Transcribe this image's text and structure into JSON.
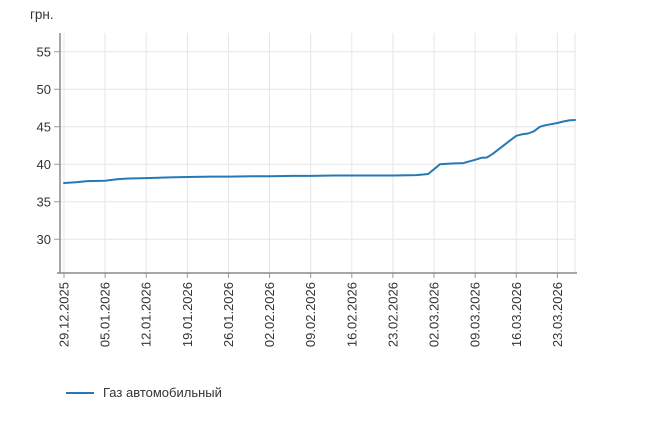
{
  "chart": {
    "unit_label": "грн."
  },
  "chart_data": {
    "type": "line",
    "title": "",
    "xlabel": "",
    "ylabel": "грн.",
    "grid": true,
    "legend_position": "bottom-left",
    "y_ticks": [
      30,
      35,
      40,
      45,
      50,
      55
    ],
    "ylim": [
      25.5,
      57.5
    ],
    "x_tick_labels": [
      "29.12.2025",
      "05.01.2026",
      "12.01.2026",
      "19.01.2026",
      "26.01.2026",
      "02.02.2026",
      "09.02.2026",
      "16.02.2026",
      "23.02.2026",
      "02.03.2026",
      "09.03.2026",
      "16.03.2026",
      "23.03.2026"
    ],
    "series": [
      {
        "name": "Газ автомобильный",
        "color": "#2579b5",
        "points": [
          [
            "29.12.2025",
            37.5
          ],
          [
            "31.12.2025",
            37.6
          ],
          [
            "02.01.2026",
            37.75
          ],
          [
            "05.01.2026",
            37.8
          ],
          [
            "07.01.2026",
            38.0
          ],
          [
            "09.01.2026",
            38.1
          ],
          [
            "12.01.2026",
            38.15
          ],
          [
            "16.01.2026",
            38.25
          ],
          [
            "19.01.2026",
            38.3
          ],
          [
            "23.01.2026",
            38.35
          ],
          [
            "26.01.2026",
            38.35
          ],
          [
            "30.01.2026",
            38.4
          ],
          [
            "02.02.2026",
            38.4
          ],
          [
            "06.02.2026",
            38.45
          ],
          [
            "09.02.2026",
            38.45
          ],
          [
            "13.02.2026",
            38.5
          ],
          [
            "16.02.2026",
            38.5
          ],
          [
            "20.02.2026",
            38.5
          ],
          [
            "23.02.2026",
            38.5
          ],
          [
            "27.02.2026",
            38.55
          ],
          [
            "01.03.2026",
            38.7
          ],
          [
            "03.03.2026",
            40.0
          ],
          [
            "05.03.2026",
            40.1
          ],
          [
            "07.03.2026",
            40.15
          ],
          [
            "09.03.2026",
            40.6
          ],
          [
            "10.03.2026",
            40.85
          ],
          [
            "11.03.2026",
            40.9
          ],
          [
            "12.03.2026",
            41.4
          ],
          [
            "13.03.2026",
            42.0
          ],
          [
            "14.03.2026",
            42.6
          ],
          [
            "15.03.2026",
            43.2
          ],
          [
            "16.03.2026",
            43.8
          ],
          [
            "17.03.2026",
            44.0
          ],
          [
            "18.03.2026",
            44.1
          ],
          [
            "19.03.2026",
            44.4
          ],
          [
            "20.03.2026",
            45.0
          ],
          [
            "21.03.2026",
            45.2
          ],
          [
            "23.03.2026",
            45.5
          ],
          [
            "24.03.2026",
            45.7
          ],
          [
            "25.03.2026",
            45.85
          ],
          [
            "26.03.2026",
            45.9
          ]
        ]
      }
    ]
  }
}
